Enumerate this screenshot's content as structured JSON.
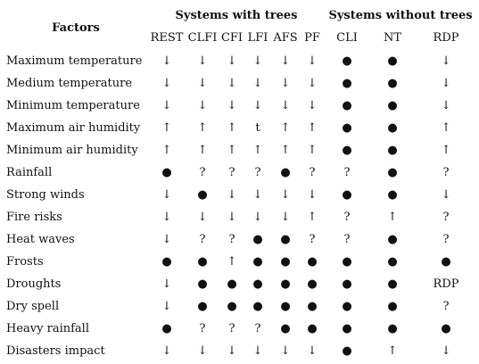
{
  "header": {
    "factors": "Factors",
    "group_with": "Systems with trees",
    "group_without": "Systems without trees",
    "columns": [
      "REST",
      "CLFI",
      "CFI",
      "LFI",
      "AFS",
      "PF",
      "CLI",
      "NT",
      "RDP"
    ]
  },
  "rows": [
    {
      "factor": "Maximum temperature",
      "cells": [
        "↓",
        "↓",
        "↓",
        "↓",
        "↓",
        "↓",
        "●",
        "●",
        "↓"
      ]
    },
    {
      "factor": "Medium temperature",
      "cells": [
        "↓",
        "↓",
        "↓",
        "↓",
        "↓",
        "↓",
        "●",
        "●",
        "↓"
      ]
    },
    {
      "factor": "Minimum temperature",
      "cells": [
        "↓",
        "↓",
        "↓",
        "↓",
        "↓",
        "↓",
        "●",
        "●",
        "↓"
      ]
    },
    {
      "factor": "Maximum air humidity",
      "cells": [
        "↑",
        "↑",
        "↑",
        "t",
        "↑",
        "↑",
        "●",
        "●",
        "↑"
      ]
    },
    {
      "factor": "Minimum air humidity",
      "cells": [
        "↑",
        "↑",
        "↑",
        "↑",
        "↑",
        "↑",
        "●",
        "●",
        "↑"
      ]
    },
    {
      "factor": "Rainfall",
      "cells": [
        "●",
        "?",
        "?",
        "?",
        "●",
        "?",
        "?",
        "●",
        "?"
      ]
    },
    {
      "factor": "Strong winds",
      "cells": [
        "↓",
        "●",
        "↓",
        "↓",
        "↓",
        "↓",
        "●",
        "●",
        "↓"
      ]
    },
    {
      "factor": "Fire risks",
      "cells": [
        "↓",
        "↓",
        "↓",
        "↓",
        "↓",
        "↑",
        "?",
        "↑",
        "?"
      ]
    },
    {
      "factor": "Heat waves",
      "cells": [
        "↓",
        "?",
        "?",
        "●",
        "●",
        "?",
        "?",
        "●",
        "?"
      ]
    },
    {
      "factor": "Frosts",
      "cells": [
        "●",
        "●",
        "↑",
        "●",
        "●",
        "●",
        "●",
        "●",
        "●"
      ]
    },
    {
      "factor": "Droughts",
      "cells": [
        "↓",
        "●",
        "●",
        "●",
        "●",
        "●",
        "●",
        "●",
        "RDP"
      ]
    },
    {
      "factor": "Dry spell",
      "cells": [
        "↓",
        "●",
        "●",
        "●",
        "●",
        "●",
        "●",
        "●",
        "?"
      ]
    },
    {
      "factor": "Heavy rainfall",
      "cells": [
        "●",
        "?",
        "?",
        "?",
        "●",
        "●",
        "●",
        "●",
        "●"
      ]
    },
    {
      "factor": "Disasters impact",
      "cells": [
        "↓",
        "↓",
        "↓",
        "↓",
        "↓",
        "↓",
        "●",
        "↑",
        "↓"
      ]
    }
  ]
}
